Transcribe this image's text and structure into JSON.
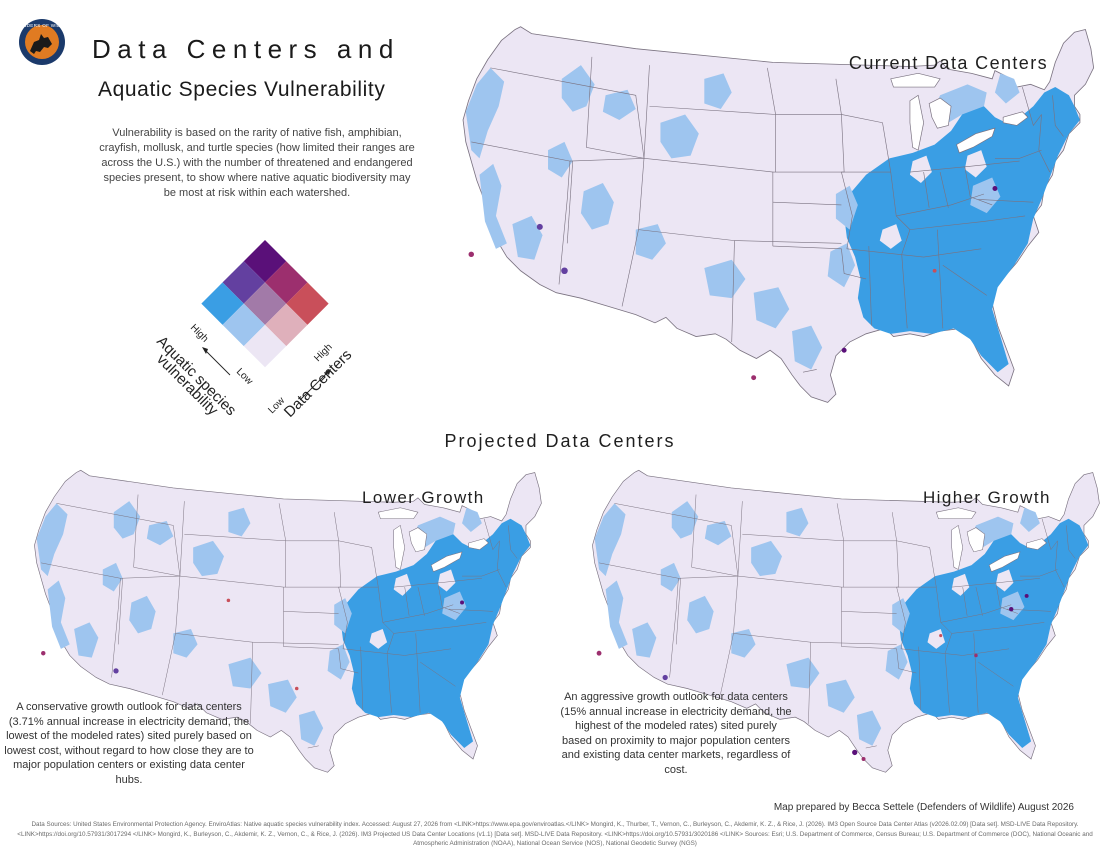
{
  "logo": {
    "text": "DEFENDERS OF WILDLIFE",
    "colors": [
      "#1b3a6b",
      "#e07b22"
    ]
  },
  "title": {
    "line1": "Data Centers and",
    "line2": "Aquatic Species Vulnerability"
  },
  "description": "Vulnerability is based on the rarity of native fish, amphibian, crayfish, mollusk, and turtle species (how limited their ranges are across the U.S.) with the number of threatened and endangered species present, to show where native aquatic biodiversity may be most at risk within each watershed.",
  "legend": {
    "type": "bivariate 3x3",
    "left_axis": {
      "label_line1": "Aquatic species",
      "label_line2": "vulnerability",
      "high": "High",
      "low": "Low"
    },
    "right_axis": {
      "label": "Data Centers",
      "high": "High",
      "low": "Low"
    },
    "colors": {
      "low_low": "#ece6f4",
      "low_mid": "#dfb0bb",
      "low_high": "#c94f5a",
      "mid_low": "#9ec5ef",
      "mid_mid": "#a27aa8",
      "mid_high": "#9c2f6e",
      "high_low": "#3a9ee4",
      "high_mid": "#6340a0",
      "high_high": "#5a1079"
    }
  },
  "maps": {
    "current": {
      "label": "Current Data Centers"
    },
    "projected_heading": "Projected Data Centers",
    "lower": {
      "label": "Lower Growth",
      "note": "A conservative growth outlook for data centers (3.71% annual increase in electricity demand, the lowest of the modeled rates) sited purely based on lowest cost, without regard to how close they are to major population centers or existing data center hubs."
    },
    "higher": {
      "label": "Higher Growth",
      "note": "An aggressive growth outlook for data centers (15% annual increase in electricity demand, the highest of the modeled rates) sited purely based on proximity to major population centers and existing data center markets, regardless of cost."
    }
  },
  "credit": "Map prepared by Becca Settele (Defenders of Wildlife) August 2026",
  "sources": "Data Sources: United States Environmental Protection Agency. EnviroAtlas: Native aquatic species vulnerability index. Accessed: August 27, 2026 from <LINK>https://www.epa.gov/enviroatlas.</LINK> Mongird, K., Thurber, T., Vernon, C., Burleyson, C., Akdemir, K. Z., & Rice, J. (2026). IM3 Open Source Data Center Atlas (v2026.02.09) [Data set]. MSD-LIVE Data Repository. <LINK>https://doi.org/10.57931/3017294 </LINK> Mongird, K., Burleyson, C., Akdemir, K. Z., Vernon, C., & Rice, J. (2026). IM3 Projected US Data Center Locations (v1.1) [Data set]. MSD-LIVE Data Repository. <LINK>https://doi.org/10.57931/3020186 </LINK> Sources: Esri; U.S. Department of Commerce, Census Bureau; U.S. Department of Commerce (DOC), National Oceanic and Atmospheric Administration (NOAA), National Ocean Service (NOS), National Geodetic Survey (NGS)"
}
